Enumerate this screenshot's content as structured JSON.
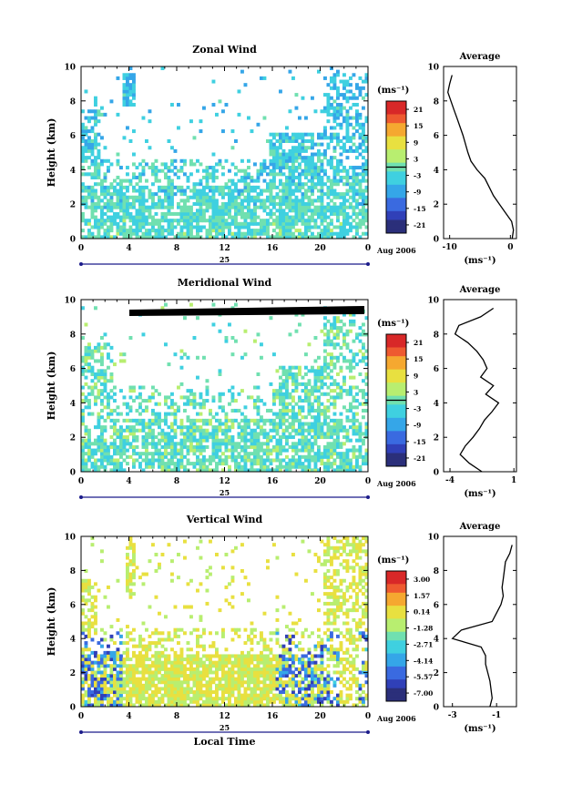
{
  "chart_data": [
    {
      "type": "heatmap",
      "title": "Zonal Wind",
      "ylabel": "Height (km)",
      "xlabel": "",
      "xlim": [
        0,
        24
      ],
      "ylim": [
        0,
        10
      ],
      "x_ticks": [
        "0",
        "4",
        "8",
        "12",
        "16",
        "20",
        "0"
      ],
      "y_ticks": [
        "0",
        "2",
        "4",
        "6",
        "8",
        "10"
      ],
      "date_day": "25",
      "date_month": "Aug 2006",
      "colorbar": {
        "unit": "(ms⁻¹)",
        "ticks": [
          "21",
          "15",
          "9",
          "3",
          "-3",
          "-9",
          "-15",
          "-21"
        ],
        "range": [
          -24,
          24
        ]
      },
      "avg": {
        "title": "Average",
        "xlabel": "(ms⁻¹)",
        "x_ticks": [
          "-10",
          "0"
        ],
        "xlim": [
          -11,
          1
        ],
        "heights": [
          0,
          0.5,
          1,
          1.5,
          2,
          2.5,
          3,
          3.5,
          4,
          4.5,
          5,
          5.5,
          6,
          6.5,
          7,
          7.5,
          8,
          8.5,
          9,
          9.5
        ],
        "values": [
          0.3,
          0.5,
          0.2,
          -0.8,
          -1.8,
          -2.8,
          -3.5,
          -4.2,
          -5.5,
          -6.5,
          -7,
          -7.4,
          -7.8,
          -8.3,
          -8.8,
          -9.3,
          -9.8,
          -10.3,
          -10,
          -9.6
        ]
      }
    },
    {
      "type": "heatmap",
      "title": "Meridional Wind",
      "ylabel": "Height (km)",
      "xlabel": "",
      "xlim": [
        0,
        24
      ],
      "ylim": [
        0,
        10
      ],
      "x_ticks": [
        "0",
        "4",
        "8",
        "12",
        "16",
        "20",
        "0"
      ],
      "y_ticks": [
        "0",
        "2",
        "4",
        "6",
        "8",
        "10"
      ],
      "date_day": "25",
      "date_month": "Aug 2006",
      "colorbar": {
        "unit": "(ms⁻¹)",
        "ticks": [
          "21",
          "15",
          "9",
          "3",
          "-3",
          "-9",
          "-15",
          "-21"
        ],
        "range": [
          -24,
          24
        ]
      },
      "avg": {
        "title": "Average",
        "xlabel": "(ms⁻¹)",
        "x_ticks": [
          "-4",
          "1"
        ],
        "xlim": [
          -4.5,
          1.2
        ],
        "heights": [
          0,
          0.5,
          1,
          1.5,
          2,
          2.5,
          3,
          3.5,
          4,
          4.5,
          5,
          5.5,
          6,
          6.5,
          7,
          7.5,
          8,
          8.5,
          9,
          9.5
        ],
        "values": [
          -1.5,
          -2.5,
          -3.2,
          -2.8,
          -2.2,
          -1.7,
          -1.3,
          -0.7,
          -0.2,
          -1.2,
          -0.6,
          -1.6,
          -1.1,
          -1.4,
          -1.9,
          -2.6,
          -3.6,
          -3.3,
          -1.6,
          -0.6
        ]
      }
    },
    {
      "type": "heatmap",
      "title": "Vertical Wind",
      "ylabel": "Height (km)",
      "xlabel": "Local Time",
      "xlim": [
        0,
        24
      ],
      "ylim": [
        0,
        10
      ],
      "x_ticks": [
        "0",
        "4",
        "8",
        "12",
        "16",
        "20",
        "0"
      ],
      "y_ticks": [
        "0",
        "2",
        "4",
        "6",
        "8",
        "10"
      ],
      "date_day": "25",
      "date_month": "Aug 2006",
      "colorbar": {
        "unit": "(ms⁻¹)",
        "ticks": [
          "3.00",
          "1.57",
          "0.14",
          "-1.28",
          "-2.71",
          "-4.14",
          "-5.57",
          "-7.00"
        ],
        "range": [
          -7.7,
          3.7
        ]
      },
      "avg": {
        "title": "Average",
        "xlabel": "(ms⁻¹)",
        "x_ticks": [
          "-3",
          "-1"
        ],
        "xlim": [
          -3.4,
          -0.1
        ],
        "heights": [
          0,
          0.5,
          1,
          1.5,
          2,
          2.5,
          3,
          3.5,
          4,
          4.5,
          5,
          5.5,
          6,
          6.5,
          7,
          7.5,
          8,
          8.5,
          9,
          9.5
        ],
        "values": [
          -1.3,
          -1.2,
          -1.25,
          -1.3,
          -1.4,
          -1.5,
          -1.5,
          -1.7,
          -3.0,
          -2.6,
          -1.2,
          -1.0,
          -0.8,
          -0.7,
          -0.75,
          -0.7,
          -0.65,
          -0.6,
          -0.4,
          -0.3
        ]
      }
    }
  ]
}
